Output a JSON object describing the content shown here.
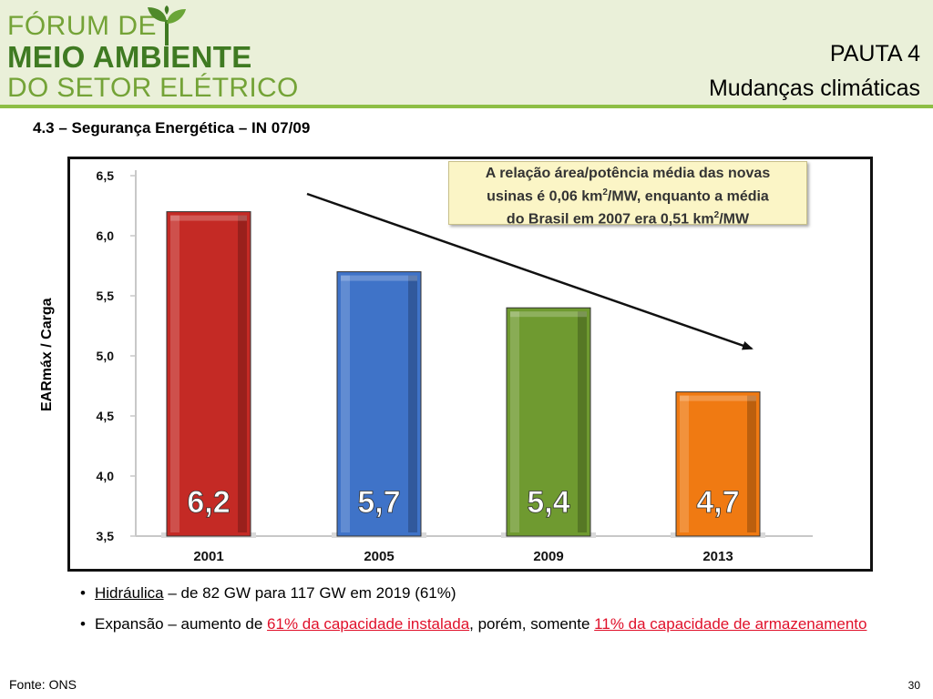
{
  "header": {
    "logo_line1": "FÓRUM DE",
    "logo_line2": "MEIO AMBIENTE",
    "logo_line3": "DO SETOR ELÉTRICO",
    "pauta": "PAUTA 4",
    "topic": "Mudanças climáticas"
  },
  "subtitle": "4.3 – Segurança Energética – IN 07/09",
  "callout": {
    "line1": "A relação área/potência média das novas",
    "line2_a": "usinas é 0,06 km",
    "line2_b": "/MW, enquanto a média",
    "line3_a": "do Brasil em 2007 era 0,51 km",
    "line3_b": "/MW",
    "sup": "2"
  },
  "chart_data": {
    "type": "bar",
    "categories": [
      "2001",
      "2005",
      "2009",
      "2013"
    ],
    "values": [
      6.2,
      5.7,
      5.4,
      4.7
    ],
    "value_labels": [
      "6,2",
      "5,7",
      "5,4",
      "4,7"
    ],
    "colors": [
      "#c42a25",
      "#3f73c8",
      "#6f9a30",
      "#f07a12"
    ],
    "ylabel": "EARmáx / Carga",
    "ylim": [
      3.5,
      6.5
    ],
    "yticks": [
      3.5,
      4.0,
      4.5,
      5.0,
      5.5,
      6.0,
      6.5
    ],
    "ytick_labels": [
      "3,5",
      "4,0",
      "4,5",
      "5,0",
      "5,5",
      "6,0",
      "6,5"
    ],
    "grid": false,
    "annotation": "trend arrow pointing down"
  },
  "bullets": [
    {
      "underlined": "Hidráulica",
      "rest": " – de 82 GW para 117 GW em 2019 (61%)"
    },
    {
      "pre": "Expansão – aumento de ",
      "red1": "61% da capacidade instalada",
      "mid": ", porém, somente ",
      "red2": "11% da capacidade de armazenamento"
    }
  ],
  "bullet_char": "•",
  "footer": {
    "source": "Fonte: ONS",
    "page": "30"
  }
}
